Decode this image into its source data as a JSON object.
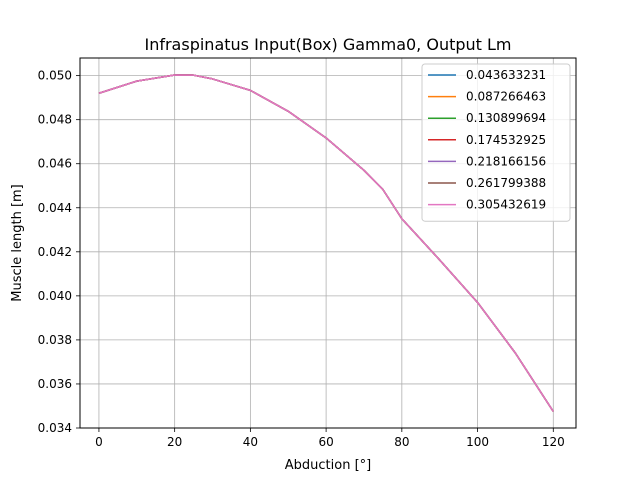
{
  "chart_data": {
    "type": "line",
    "title": "Infraspinatus Input(Box) Gamma0, Output Lm",
    "xlabel": "Abduction [°]",
    "ylabel": "Muscle length [m]",
    "xlim": [
      -5,
      126
    ],
    "ylim": [
      0.034,
      0.0508
    ],
    "x_ticks": [
      0,
      20,
      40,
      60,
      80,
      100,
      120
    ],
    "x_tick_labels": [
      "0",
      "20",
      "40",
      "60",
      "80",
      "100",
      "120"
    ],
    "y_ticks": [
      0.034,
      0.036,
      0.038,
      0.04,
      0.042,
      0.044,
      0.046,
      0.048,
      0.05
    ],
    "y_tick_labels": [
      "0.034",
      "0.036",
      "0.038",
      "0.040",
      "0.042",
      "0.044",
      "0.046",
      "0.048",
      "0.050"
    ],
    "grid": true,
    "legend_position": "top-right",
    "x": [
      0,
      10,
      20,
      25,
      30,
      40,
      50,
      60,
      70,
      75,
      80,
      90,
      100,
      110,
      120
    ],
    "series": [
      {
        "name": "0.043633231",
        "color": "#1f77b4",
        "values": [
          0.0492,
          0.04975,
          0.05003,
          0.05002,
          0.04985,
          0.04933,
          0.04838,
          0.04717,
          0.0457,
          0.04483,
          0.0435,
          0.04163,
          0.0397,
          0.0374,
          0.03475
        ]
      },
      {
        "name": "0.087266463",
        "color": "#ff7f0e",
        "values": [
          0.0492,
          0.04975,
          0.05003,
          0.05002,
          0.04985,
          0.04933,
          0.04838,
          0.04717,
          0.0457,
          0.04483,
          0.0435,
          0.04163,
          0.0397,
          0.0374,
          0.03475
        ]
      },
      {
        "name": "0.130899694",
        "color": "#2ca02c",
        "values": [
          0.0492,
          0.04975,
          0.05003,
          0.05002,
          0.04985,
          0.04933,
          0.04838,
          0.04717,
          0.0457,
          0.04483,
          0.0435,
          0.04163,
          0.0397,
          0.0374,
          0.03475
        ]
      },
      {
        "name": "0.174532925",
        "color": "#d62728",
        "values": [
          0.0492,
          0.04975,
          0.05003,
          0.05002,
          0.04985,
          0.04933,
          0.04838,
          0.04717,
          0.0457,
          0.04483,
          0.0435,
          0.04163,
          0.0397,
          0.0374,
          0.03475
        ]
      },
      {
        "name": "0.218166156",
        "color": "#9467bd",
        "values": [
          0.0492,
          0.04975,
          0.05003,
          0.05002,
          0.04985,
          0.04933,
          0.04838,
          0.04717,
          0.0457,
          0.04483,
          0.0435,
          0.04163,
          0.0397,
          0.0374,
          0.03475
        ]
      },
      {
        "name": "0.261799388",
        "color": "#8c564b",
        "values": [
          0.0492,
          0.04975,
          0.05003,
          0.05002,
          0.04985,
          0.04933,
          0.04838,
          0.04717,
          0.0457,
          0.04483,
          0.0435,
          0.04163,
          0.0397,
          0.0374,
          0.03475
        ]
      },
      {
        "name": "0.305432619",
        "color": "#e377c2",
        "values": [
          0.0492,
          0.04975,
          0.05003,
          0.05002,
          0.04985,
          0.04933,
          0.04838,
          0.04717,
          0.0457,
          0.04483,
          0.0435,
          0.04163,
          0.0397,
          0.0374,
          0.03475
        ]
      }
    ]
  }
}
